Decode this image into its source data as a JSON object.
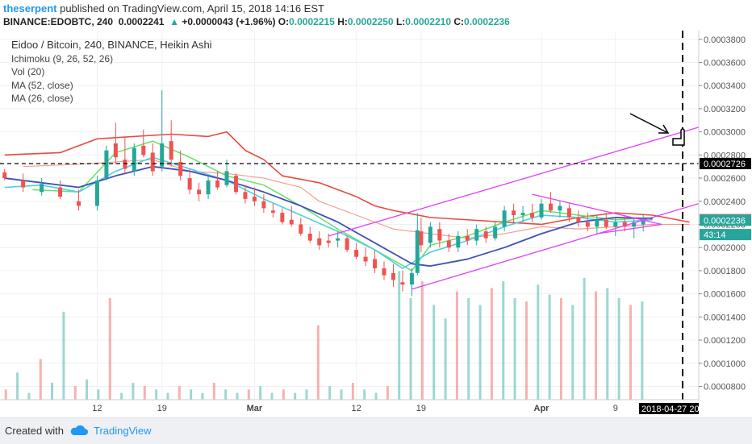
{
  "header": {
    "author": "theserpent",
    "published": "published on TradingView.com, April 15, 2018 14:16 EST",
    "symbol": "BINANCE:EDOBTC, 240",
    "price": "0.0002241",
    "change_arrow": "▲",
    "change": "+0.0000043 (+1.96%)",
    "o_label": "O:",
    "o": "0.0002215",
    "h_label": "H:",
    "h": "0.0002250",
    "l_label": "L:",
    "l": "0.0002210",
    "c_label": "C:",
    "c": "0.0002236"
  },
  "legend": {
    "title": "Eidoo / Bitcoin, 240, BINANCE, Heikin Ashi",
    "indicators": [
      "Ichimoku (9, 26, 52, 26)",
      "Vol (20)",
      "MA (52, close)",
      "MA (26, close)"
    ]
  },
  "footer": {
    "created": "Created with",
    "brand": "TradingView"
  },
  "colors": {
    "up": "#26a69a",
    "down": "#ef5350",
    "cloud_line": "#e64a3c",
    "ichimoku_green": "#66e066",
    "ma52": "#3f51b5",
    "ma26": "#4dd0e1",
    "channel": "#e040fb",
    "price_tag": "#ef5350",
    "close_tag": "#26a69a",
    "dashed_tag": "#000000"
  },
  "chart_data": {
    "type": "candlestick",
    "title": "Eidoo / Bitcoin, 240, BINANCE, Heikin Ashi",
    "y_ticks": [
      "0.0000800",
      "0.0001000",
      "0.0001200",
      "0.0001400",
      "0.0001600",
      "0.0001800",
      "0.0002000",
      "0.0002200",
      "0.0002400",
      "0.0002600",
      "0.0002800",
      "0.0003000",
      "0.0003200",
      "0.0003400",
      "0.0003600",
      "0.0003800"
    ],
    "x_ticks": [
      "12",
      "19",
      "Mar",
      "12",
      "19",
      "Apr",
      "9"
    ],
    "x_tick_days": [
      12,
      19,
      29,
      40,
      47,
      60,
      68
    ],
    "ylim": [
      6.85e-05,
      0.0003875
    ],
    "xlim": [
      1.5,
      77
    ],
    "ohlc_sample": [
      [
        2,
        0.000265,
        0.000268,
        0.000258,
        0.00026
      ],
      [
        4,
        0.000258,
        0.000264,
        0.000248,
        0.000252
      ],
      [
        6,
        0.000248,
        0.00026,
        0.000245,
        0.000255
      ],
      [
        8,
        0.000252,
        0.000258,
        0.000242,
        0.000244
      ],
      [
        10,
        0.00024,
        0.00025,
        0.000232,
        0.000236
      ],
      [
        12,
        0.000236,
        0.000262,
        0.000232,
        0.000258
      ],
      [
        13,
        0.00026,
        0.000288,
        0.000258,
        0.000284
      ],
      [
        14,
        0.00029,
        0.000308,
        0.000272,
        0.000278
      ],
      [
        15,
        0.000276,
        0.000296,
        0.000264,
        0.000268
      ],
      [
        16,
        0.000266,
        0.00029,
        0.000262,
        0.000286
      ],
      [
        17,
        0.000288,
        0.000302,
        0.000278,
        0.00028
      ],
      [
        18,
        0.000282,
        0.00029,
        0.000262,
        0.000266
      ],
      [
        19,
        0.00027,
        0.000336,
        0.000266,
        0.00029
      ],
      [
        20,
        0.000292,
        0.00031,
        0.00027,
        0.000276
      ],
      [
        21,
        0.000274,
        0.000284,
        0.000258,
        0.000262
      ],
      [
        22,
        0.00026,
        0.000268,
        0.000246,
        0.00025
      ],
      [
        23,
        0.00025,
        0.000256,
        0.00024,
        0.000246
      ],
      [
        24,
        0.000246,
        0.000262,
        0.000242,
        0.000258
      ],
      [
        25,
        0.000258,
        0.000266,
        0.00025,
        0.000252
      ],
      [
        26,
        0.000254,
        0.000276,
        0.000252,
        0.000266
      ],
      [
        27,
        0.000262,
        0.000264,
        0.000246,
        0.000248
      ],
      [
        28,
        0.000248,
        0.000254,
        0.000238,
        0.000242
      ],
      [
        29,
        0.000244,
        0.000252,
        0.000236,
        0.00024
      ],
      [
        30,
        0.00024,
        0.000246,
        0.00023,
        0.000234
      ],
      [
        31,
        0.000232,
        0.000238,
        0.000226,
        0.00023
      ],
      [
        32,
        0.00023,
        0.000234,
        0.00022,
        0.000222
      ],
      [
        33,
        0.000224,
        0.000236,
        0.000218,
        0.00022
      ],
      [
        34,
        0.00022,
        0.000226,
        0.00021,
        0.000212
      ],
      [
        35,
        0.000212,
        0.000218,
        0.000204,
        0.000206
      ],
      [
        36,
        0.000208,
        0.000214,
        0.000198,
        0.000202
      ],
      [
        37,
        0.000206,
        0.000212,
        0.0002,
        0.000204
      ],
      [
        38,
        0.000206,
        0.000214,
        0.0002,
        0.000208
      ],
      [
        39,
        0.000208,
        0.00021,
        0.000196,
        0.000198
      ],
      [
        40,
        0.000198,
        0.000204,
        0.00019,
        0.000192
      ],
      [
        41,
        0.000192,
        0.0002,
        0.000184,
        0.000188
      ],
      [
        42,
        0.00019,
        0.000198,
        0.000178,
        0.000182
      ],
      [
        43,
        0.000182,
        0.000188,
        0.000172,
        0.000176
      ],
      [
        44,
        0.000178,
        0.000186,
        0.000166,
        0.000172
      ],
      [
        45,
        0.00017,
        0.00018,
        0.000162,
        0.000168
      ],
      [
        46,
        0.000168,
        0.000182,
        0.000158,
        0.000178
      ],
      [
        46.6,
        0.000178,
        0.00023,
        0.000176,
        0.000215
      ],
      [
        47,
        0.000214,
        0.000226,
        0.000196,
        0.000202
      ],
      [
        48,
        0.000204,
        0.000222,
        0.0002,
        0.000218
      ],
      [
        49,
        0.000216,
        0.000222,
        0.0002,
        0.000206
      ],
      [
        50,
        0.000206,
        0.000212,
        0.000196,
        0.0002
      ],
      [
        51,
        0.0002,
        0.000214,
        0.000196,
        0.00021
      ],
      [
        52,
        0.00021,
        0.000216,
        0.000202,
        0.000206
      ],
      [
        53,
        0.000206,
        0.00022,
        0.000202,
        0.000216
      ],
      [
        54,
        0.000214,
        0.000218,
        0.000204,
        0.000208
      ],
      [
        55,
        0.000208,
        0.000222,
        0.000206,
        0.000218
      ],
      [
        56,
        0.000218,
        0.000236,
        0.000214,
        0.000232
      ],
      [
        57,
        0.000232,
        0.000238,
        0.000222,
        0.000228
      ],
      [
        58,
        0.000228,
        0.000236,
        0.000222,
        0.00023
      ],
      [
        59,
        0.00023,
        0.000238,
        0.000222,
        0.000226
      ],
      [
        60,
        0.000226,
        0.000242,
        0.000224,
        0.000238
      ],
      [
        61,
        0.000238,
        0.000248,
        0.00023,
        0.000232
      ],
      [
        62,
        0.000232,
        0.00024,
        0.000226,
        0.000236
      ],
      [
        63,
        0.000234,
        0.000238,
        0.000222,
        0.000226
      ],
      [
        64,
        0.000226,
        0.000232,
        0.000218,
        0.000222
      ],
      [
        65,
        0.000222,
        0.00023,
        0.000214,
        0.000218
      ],
      [
        66,
        0.000218,
        0.000228,
        0.000212,
        0.000224
      ],
      [
        67,
        0.000224,
        0.00023,
        0.000216,
        0.000218
      ],
      [
        68,
        0.000218,
        0.000226,
        0.00021,
        0.000222
      ],
      [
        69,
        0.000222,
        0.000228,
        0.000214,
        0.000218
      ],
      [
        70,
        0.000218,
        0.000226,
        0.000208,
        0.000222
      ],
      [
        71,
        0.00022,
        0.000228,
        0.000214,
        0.000224
      ]
    ],
    "volume_sample": [
      3,
      8,
      2,
      12,
      5,
      26,
      4,
      6,
      3,
      30,
      2,
      5,
      4,
      3,
      2,
      4,
      3,
      2,
      5,
      3,
      2,
      3,
      4,
      2,
      3,
      2,
      3,
      22,
      4,
      3,
      5,
      3,
      2,
      4,
      38,
      30,
      35,
      28,
      24,
      32,
      30,
      28,
      33,
      35,
      30,
      29,
      34,
      31,
      30,
      28,
      36,
      32,
      33,
      30,
      28,
      29
    ],
    "lines": {
      "ma52": [
        [
          2,
          0.00026
        ],
        [
          6,
          0.000256
        ],
        [
          10,
          0.000252
        ],
        [
          14,
          0.000262
        ],
        [
          18,
          0.00027
        ],
        [
          22,
          0.000266
        ],
        [
          26,
          0.000258
        ],
        [
          30,
          0.000248
        ],
        [
          34,
          0.000236
        ],
        [
          38,
          0.000222
        ],
        [
          42,
          0.000204
        ],
        [
          46,
          0.000186
        ],
        [
          48,
          0.000184
        ],
        [
          52,
          0.00019
        ],
        [
          56,
          0.0002
        ],
        [
          60,
          0.000212
        ],
        [
          64,
          0.000222
        ],
        [
          68,
          0.000226
        ],
        [
          72,
          0.000225
        ]
      ],
      "ma26": [
        [
          2,
          0.000252
        ],
        [
          6,
          0.000254
        ],
        [
          10,
          0.000248
        ],
        [
          14,
          0.000266
        ],
        [
          18,
          0.000278
        ],
        [
          22,
          0.000268
        ],
        [
          26,
          0.000258
        ],
        [
          30,
          0.000242
        ],
        [
          34,
          0.000228
        ],
        [
          38,
          0.000214
        ],
        [
          42,
          0.000198
        ],
        [
          45,
          0.000182
        ],
        [
          48,
          0.000196
        ],
        [
          52,
          0.000206
        ],
        [
          56,
          0.000218
        ],
        [
          60,
          0.000228
        ],
        [
          64,
          0.000226
        ],
        [
          68,
          0.000222
        ],
        [
          72,
          0.000224
        ]
      ],
      "ichimoku_tenkan": [
        [
          5,
          0.00025
        ],
        [
          10,
          0.000248
        ],
        [
          14,
          0.000282
        ],
        [
          18,
          0.000292
        ],
        [
          22,
          0.000278
        ],
        [
          26,
          0.000262
        ],
        [
          30,
          0.000254
        ],
        [
          34,
          0.000236
        ],
        [
          38,
          0.000216
        ],
        [
          42,
          0.000198
        ],
        [
          46,
          0.00018
        ],
        [
          48,
          0.000202
        ],
        [
          52,
          0.00021
        ],
        [
          56,
          0.000222
        ],
        [
          60,
          0.000232
        ],
        [
          64,
          0.000228
        ],
        [
          68,
          0.000224
        ],
        [
          72,
          0.000226
        ]
      ],
      "ichimoku_cloud_top": [
        [
          2,
          0.00028
        ],
        [
          8,
          0.000282
        ],
        [
          12,
          0.000294
        ],
        [
          20,
          0.000298
        ],
        [
          24,
          0.000296
        ],
        [
          26,
          0.0003
        ],
        [
          28,
          0.000284
        ],
        [
          30,
          0.000276
        ],
        [
          32,
          0.000262
        ],
        [
          36,
          0.000256
        ],
        [
          38,
          0.00025
        ],
        [
          40,
          0.000244
        ],
        [
          42,
          0.000236
        ],
        [
          44,
          0.000232
        ],
        [
          48,
          0.000226
        ],
        [
          52,
          0.000224
        ],
        [
          56,
          0.000222
        ],
        [
          60,
          0.00022
        ],
        [
          64,
          0.000226
        ],
        [
          68,
          0.00023
        ],
        [
          72,
          0.000228
        ],
        [
          76,
          0.000222
        ]
      ],
      "ichimoku_cloud_bottom": [
        [
          4,
          0.00027
        ],
        [
          10,
          0.000272
        ],
        [
          14,
          0.000274
        ],
        [
          18,
          0.000276
        ],
        [
          22,
          0.000266
        ],
        [
          26,
          0.000264
        ],
        [
          30,
          0.00026
        ],
        [
          34,
          0.000252
        ],
        [
          36,
          0.00024
        ],
        [
          40,
          0.000228
        ],
        [
          44,
          0.000216
        ],
        [
          48,
          0.000212
        ],
        [
          52,
          0.000208
        ],
        [
          56,
          0.000212
        ],
        [
          60,
          0.000218
        ],
        [
          64,
          0.000216
        ],
        [
          68,
          0.000218
        ],
        [
          72,
          0.00022
        ],
        [
          76,
          0.00022
        ]
      ]
    },
    "channel": {
      "upper": [
        [
          37,
          0.00021
        ],
        [
          77,
          0.000304
        ]
      ],
      "lower": [
        [
          46,
          0.000164
        ],
        [
          77,
          0.000238
        ]
      ],
      "triangle_top": [
        [
          59,
          0.000246
        ],
        [
          73,
          0.00022
        ]
      ],
      "triangle_bottom": [
        [
          66,
          0.000212
        ],
        [
          73,
          0.00022
        ]
      ]
    },
    "horizontal_line": 0.0002726,
    "price_labels": [
      {
        "value": 0.0002726,
        "text": "0.0002726"
      },
      {
        "value": 0.0002241,
        "text": "0.0002241"
      },
      {
        "value": 0.0002236,
        "text": "0.0002236"
      },
      {
        "value": 0.000214,
        "text": "43:14"
      }
    ],
    "vertical_line_date": "2018-04-27",
    "vertical_line_label": "2018-04-27  20"
  }
}
